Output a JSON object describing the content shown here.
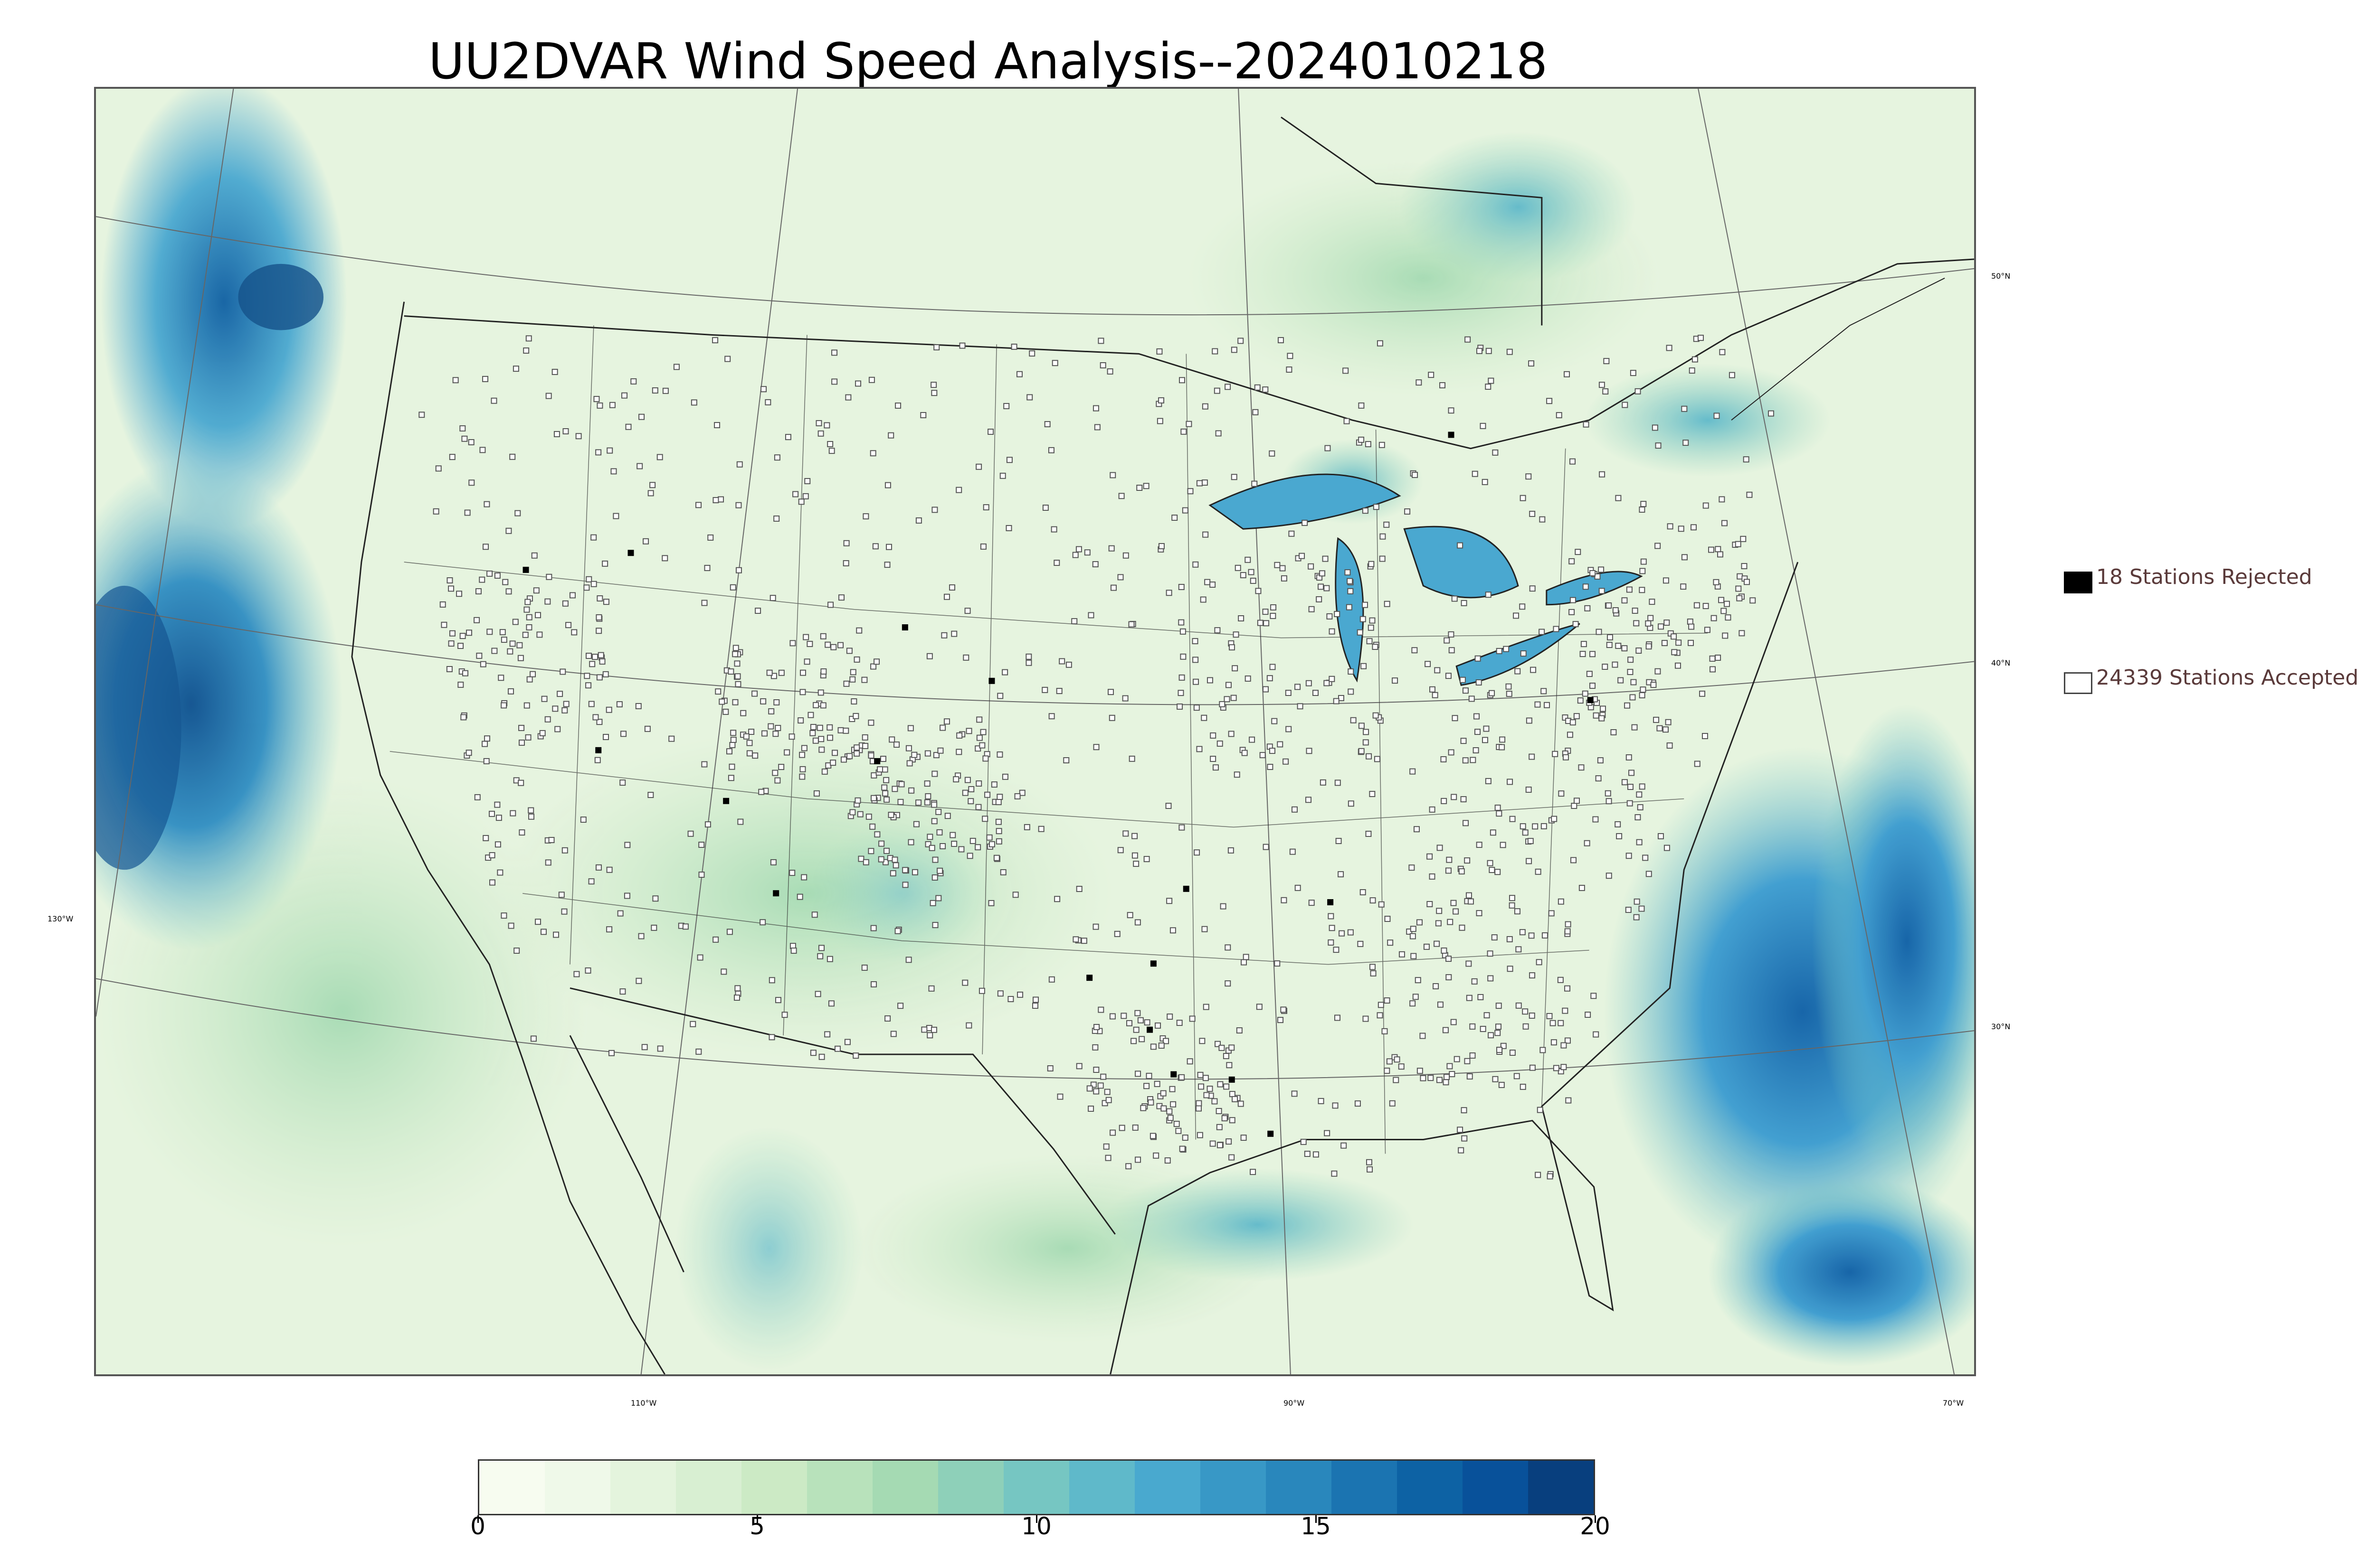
{
  "title": "UU2DVAR Wind Speed Analysis--2024010218",
  "legend": {
    "rejected": "18 Stations Rejected",
    "accepted": "24339 Stations Accepted"
  },
  "graticule": {
    "lat_labels": [
      "50°N",
      "40°N",
      "30°N"
    ],
    "lon_labels": [
      "130°W",
      "110°W",
      "90°W",
      "70°W"
    ]
  },
  "colorbar": {
    "ticks": [
      "0",
      "5",
      "10",
      "15",
      "20"
    ],
    "min": 0,
    "max": 20,
    "colors": [
      "#f7fcf0",
      "#eff9e9",
      "#e4f4dd",
      "#d8efd2",
      "#cceac5",
      "#b8e2bb",
      "#a5dab3",
      "#8ed0b9",
      "#76c6c2",
      "#5fb9ca",
      "#49a9cf",
      "#3898c6",
      "#2987bc",
      "#1b74b1",
      "#0d62a4",
      "#08519a",
      "#083f7e"
    ]
  },
  "colors": {
    "ocean_strong": "#1167ad",
    "ocean_mid": "#4aa8d0",
    "land_base": "#eaf6e4",
    "station_outline": "#555555"
  }
}
